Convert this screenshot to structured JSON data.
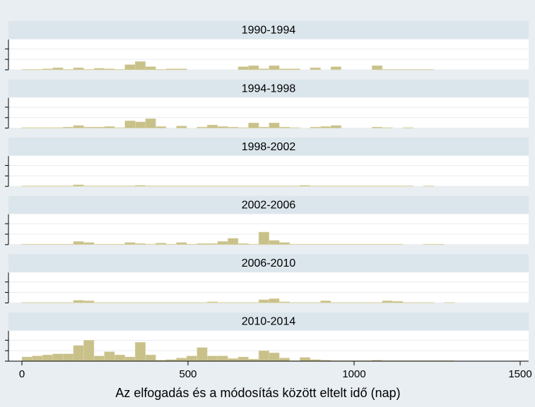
{
  "chart_data": {
    "type": "histogram",
    "xlabel": "Az elfogadás és a módosítás között eltelt idő (nap)",
    "xlim": [
      -40,
      1500
    ],
    "xticks": [
      0,
      500,
      1000,
      1500
    ],
    "ylim": [
      0,
      2.9
    ],
    "yticks": [
      0,
      1,
      2
    ],
    "grid": true,
    "color": "#c9c18a",
    "bins": [
      0,
      31,
      62,
      93,
      124,
      155,
      186,
      217,
      248,
      279,
      310,
      341,
      372,
      403,
      434,
      465,
      496,
      527,
      558,
      589,
      620,
      651,
      682,
      713,
      744,
      775,
      806,
      837,
      868,
      899,
      930,
      961,
      992,
      1023,
      1054,
      1085,
      1116,
      1147,
      1178,
      1209,
      1240,
      1271,
      1302
    ],
    "panels": [
      {
        "title": "1990-1994",
        "values": [
          0.05,
          0.05,
          0.1,
          0.2,
          0.05,
          0.2,
          0.05,
          0.15,
          0.1,
          0.05,
          0.5,
          0.8,
          0.3,
          0.05,
          0.1,
          0.1,
          0,
          0,
          0,
          0,
          0,
          0.3,
          0.4,
          0.1,
          0.4,
          0.1,
          0.1,
          0,
          0.2,
          0,
          0.3,
          0,
          0,
          0,
          0.4,
          0.05,
          0.05,
          0.05,
          0.05,
          0.05,
          0,
          0
        ]
      },
      {
        "title": "1994-1998",
        "values": [
          0.05,
          0.05,
          0.05,
          0.05,
          0.1,
          0.25,
          0.1,
          0.1,
          0.15,
          0.05,
          0.7,
          0.6,
          0.9,
          0.15,
          0,
          0.2,
          0,
          0.1,
          0.3,
          0.15,
          0.1,
          0.05,
          0.5,
          0.1,
          0.5,
          0.1,
          0.05,
          0,
          0.1,
          0.15,
          0.25,
          0,
          0,
          0,
          0.1,
          0.05,
          0,
          0.05,
          0,
          0,
          0,
          0
        ]
      },
      {
        "title": "1998-2002",
        "values": [
          0.05,
          0.05,
          0.05,
          0.05,
          0.05,
          0.15,
          0.05,
          0.05,
          0.05,
          0.05,
          0.05,
          0.1,
          0.05,
          0.05,
          0.05,
          0.05,
          0.05,
          0.05,
          0.05,
          0.05,
          0.05,
          0.05,
          0.05,
          0.05,
          0.05,
          0.05,
          0.05,
          0.1,
          0.05,
          0.05,
          0.05,
          0.05,
          0.05,
          0.05,
          0.05,
          0.05,
          0.05,
          0.05,
          0,
          0.05,
          0,
          0
        ]
      },
      {
        "title": "2002-2006",
        "values": [
          0.05,
          0.05,
          0.05,
          0.05,
          0.05,
          0.3,
          0.2,
          0.05,
          0.05,
          0.05,
          0.2,
          0.1,
          0.05,
          0.15,
          0.05,
          0.2,
          0.05,
          0.1,
          0.1,
          0.3,
          0.6,
          0.1,
          0.05,
          1.2,
          0.4,
          0.2,
          0.05,
          0.05,
          0.05,
          0.05,
          0.05,
          0.05,
          0.05,
          0.05,
          0.05,
          0.05,
          0.05,
          0,
          0,
          0.05,
          0.05,
          0
        ]
      },
      {
        "title": "2006-2010",
        "values": [
          0.05,
          0.05,
          0.05,
          0.05,
          0.05,
          0.25,
          0.2,
          0.05,
          0.05,
          0.05,
          0.05,
          0.05,
          0.05,
          0.05,
          0.05,
          0.05,
          0.05,
          0.05,
          0.1,
          0.05,
          0.05,
          0.05,
          0.05,
          0.3,
          0.4,
          0.1,
          0.05,
          0.05,
          0.05,
          0.2,
          0.05,
          0.05,
          0.05,
          0.05,
          0.05,
          0.2,
          0.15,
          0.05,
          0.05,
          0.05,
          0,
          0.05
        ]
      },
      {
        "title": "2010-2014",
        "values": [
          0.4,
          0.5,
          0.6,
          0.7,
          0.7,
          1.5,
          2.0,
          0.5,
          0.9,
          0.6,
          0.4,
          1.8,
          0.6,
          0.1,
          0.15,
          0.3,
          0.5,
          1.3,
          0.5,
          0.5,
          0.25,
          0.4,
          0.2,
          1.0,
          0.8,
          0.3,
          0.05,
          0.35,
          0.15,
          0.1,
          0.05,
          0.05,
          0.05,
          0.05,
          0.1,
          0.05,
          0.05,
          0.05,
          0.05,
          0.05,
          0.05,
          0.05
        ]
      }
    ]
  }
}
